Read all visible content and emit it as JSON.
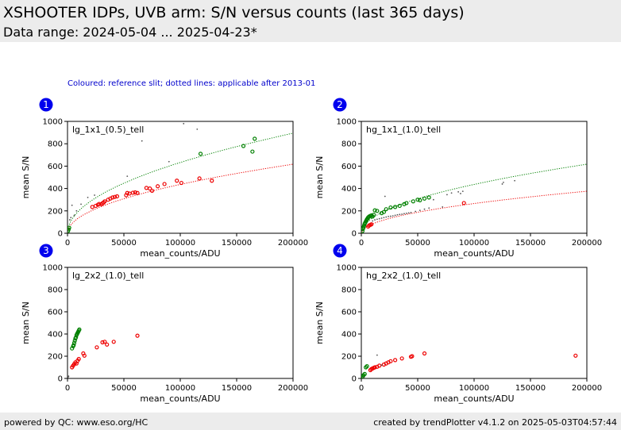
{
  "header": {
    "title": "XSHOOTER IDPs, UVB arm: S/N versus counts (last 365 days)",
    "subtitle": "Data range: 2024-05-04 ... 2025-04-23*"
  },
  "note": "Coloured: reference slit; dotted lines: applicable after 2013-01",
  "footer": {
    "left": "powered by QC: www.eso.org/HC",
    "right": "created by trendPlotter v4.1.2 on 2025-05-03T04:57:44"
  },
  "colors": {
    "green": "#008000",
    "red": "#ee0000",
    "grey": "#555555",
    "badge": "#0000ee"
  },
  "chart_data": [
    {
      "type": "scatter",
      "badge": "1",
      "label": "lg_1x1_(0.5)_tell",
      "xlabel": "mean_counts/ADU",
      "ylabel": "mean S/N",
      "xlim": [
        0,
        200000
      ],
      "ylim": [
        0,
        1000
      ],
      "xticks": [
        0,
        50000,
        100000,
        150000,
        200000
      ],
      "yticks": [
        0,
        200,
        400,
        600,
        800,
        1000
      ],
      "fits": [
        {
          "color": "green",
          "coef": 2.0
        },
        {
          "color": "red",
          "coef": 1.38
        }
      ],
      "series": [
        {
          "color": "green",
          "points": [
            [
              118000,
              710
            ],
            [
              156000,
              780
            ],
            [
              164000,
              730
            ],
            [
              166000,
              845
            ],
            [
              500,
              20
            ],
            [
              1000,
              35
            ],
            [
              1500,
              50
            ]
          ]
        },
        {
          "color": "red",
          "points": [
            [
              22000,
              235
            ],
            [
              25000,
              245
            ],
            [
              27000,
              255
            ],
            [
              28000,
              262
            ],
            [
              30000,
              260
            ],
            [
              31000,
              268
            ],
            [
              32000,
              275
            ],
            [
              33000,
              285
            ],
            [
              36000,
              300
            ],
            [
              38000,
              310
            ],
            [
              40000,
              320
            ],
            [
              42000,
              325
            ],
            [
              44000,
              330
            ],
            [
              52000,
              340
            ],
            [
              53000,
              360
            ],
            [
              55000,
              355
            ],
            [
              58000,
              362
            ],
            [
              60000,
              365
            ],
            [
              62000,
              360
            ],
            [
              70000,
              405
            ],
            [
              73000,
              400
            ],
            [
              75000,
              380
            ],
            [
              80000,
              420
            ],
            [
              86000,
              440
            ],
            [
              97000,
              470
            ],
            [
              101000,
              450
            ],
            [
              117000,
              490
            ],
            [
              128000,
              470
            ]
          ]
        },
        {
          "color": "grey",
          "points": [
            [
              2000,
              120
            ],
            [
              4000,
              250
            ],
            [
              8000,
              200
            ],
            [
              12000,
              260
            ],
            [
              18000,
              320
            ],
            [
              24000,
              340
            ],
            [
              53000,
              510
            ],
            [
              66000,
              825
            ],
            [
              90000,
              640
            ],
            [
              103000,
              980
            ],
            [
              115000,
              930
            ],
            [
              3000,
              140
            ],
            [
              6000,
              160
            ]
          ]
        }
      ]
    },
    {
      "type": "scatter",
      "badge": "2",
      "label": "hg_1x1_(1.0)_tell",
      "xlabel": "mean_counts/ADU",
      "ylabel": "mean S/N",
      "xlim": [
        0,
        200000
      ],
      "ylim": [
        0,
        1000
      ],
      "xticks": [
        0,
        50000,
        100000,
        150000,
        200000
      ],
      "yticks": [
        0,
        200,
        400,
        600,
        800,
        1000
      ],
      "fits": [
        {
          "color": "green",
          "coef": 1.38
        },
        {
          "color": "red",
          "coef": 0.84
        }
      ],
      "series": [
        {
          "color": "green",
          "points": [
            [
              1000,
              20
            ],
            [
              1500,
              40
            ],
            [
              2000,
              55
            ],
            [
              2500,
              70
            ],
            [
              3000,
              85
            ],
            [
              3500,
              95
            ],
            [
              4000,
              105
            ],
            [
              4500,
              115
            ],
            [
              5000,
              125
            ],
            [
              5500,
              130
            ],
            [
              6000,
              140
            ],
            [
              6500,
              145
            ],
            [
              7000,
              150
            ],
            [
              8000,
              155
            ],
            [
              9000,
              160
            ],
            [
              10000,
              150
            ],
            [
              11000,
              165
            ],
            [
              12000,
              205
            ],
            [
              14000,
              200
            ],
            [
              18000,
              180
            ],
            [
              20000,
              190
            ],
            [
              22000,
              215
            ],
            [
              26000,
              230
            ],
            [
              30000,
              235
            ],
            [
              34000,
              245
            ],
            [
              38000,
              260
            ],
            [
              40000,
              270
            ],
            [
              46000,
              285
            ],
            [
              50000,
              300
            ],
            [
              52000,
              295
            ],
            [
              56000,
              310
            ],
            [
              60000,
              320
            ]
          ]
        },
        {
          "color": "red",
          "points": [
            [
              6000,
              60
            ],
            [
              7000,
              70
            ],
            [
              8000,
              75
            ],
            [
              9000,
              80
            ],
            [
              91000,
              270
            ]
          ]
        },
        {
          "color": "grey",
          "points": [
            [
              10000,
              110
            ],
            [
              12000,
              120
            ],
            [
              14000,
              125
            ],
            [
              16000,
              130
            ],
            [
              18000,
              135
            ],
            [
              20000,
              140
            ],
            [
              22000,
              145
            ],
            [
              24000,
              150
            ],
            [
              26000,
              152
            ],
            [
              28000,
              155
            ],
            [
              30000,
              160
            ],
            [
              32000,
              165
            ],
            [
              34000,
              168
            ],
            [
              36000,
              170
            ],
            [
              38000,
              175
            ],
            [
              40000,
              178
            ],
            [
              42000,
              182
            ],
            [
              44000,
              185
            ],
            [
              48000,
              195
            ],
            [
              52000,
              205
            ],
            [
              56000,
              215
            ],
            [
              60000,
              225
            ],
            [
              64000,
              300
            ],
            [
              72000,
              235
            ],
            [
              76000,
              345
            ],
            [
              80000,
              360
            ],
            [
              86000,
              370
            ],
            [
              88000,
              355
            ],
            [
              90000,
              375
            ],
            [
              125000,
              440
            ],
            [
              126000,
              455
            ],
            [
              136000,
              470
            ],
            [
              21000,
              330
            ]
          ]
        }
      ]
    },
    {
      "type": "scatter",
      "badge": "3",
      "label": "lg_2x2_(1.0)_tell",
      "xlabel": "mean_counts/ADU",
      "ylabel": "mean S/N",
      "xlim": [
        0,
        200000
      ],
      "ylim": [
        0,
        1000
      ],
      "xticks": [
        0,
        50000,
        100000,
        150000,
        200000
      ],
      "yticks": [
        0,
        200,
        400,
        600,
        800,
        1000
      ],
      "fits": [],
      "series": [
        {
          "color": "green",
          "points": [
            [
              4000,
              270
            ],
            [
              5000,
              290
            ],
            [
              5500,
              300
            ],
            [
              6000,
              320
            ],
            [
              6500,
              340
            ],
            [
              7000,
              360
            ],
            [
              7500,
              370
            ],
            [
              8000,
              390
            ],
            [
              8500,
              400
            ],
            [
              9000,
              410
            ],
            [
              9500,
              420
            ],
            [
              10000,
              430
            ],
            [
              10500,
              440
            ]
          ]
        },
        {
          "color": "red",
          "points": [
            [
              4000,
              100
            ],
            [
              5000,
              115
            ],
            [
              6000,
              130
            ],
            [
              7000,
              145
            ],
            [
              8000,
              135
            ],
            [
              9000,
              160
            ],
            [
              10000,
              175
            ],
            [
              14000,
              225
            ],
            [
              15000,
              205
            ],
            [
              26000,
              280
            ],
            [
              31000,
              325
            ],
            [
              33000,
              330
            ],
            [
              35000,
              305
            ],
            [
              41000,
              330
            ],
            [
              62000,
              385
            ]
          ]
        },
        {
          "color": "grey",
          "points": [
            [
              500,
              10
            ],
            [
              1000,
              20
            ]
          ]
        }
      ]
    },
    {
      "type": "scatter",
      "badge": "4",
      "label": "hg_2x2_(1.0)_tell",
      "xlabel": "mean_counts/ADU",
      "ylabel": "mean S/N",
      "xlim": [
        0,
        200000
      ],
      "ylim": [
        0,
        1000
      ],
      "xticks": [
        0,
        50000,
        100000,
        150000,
        200000
      ],
      "yticks": [
        0,
        200,
        400,
        600,
        800,
        1000
      ],
      "fits": [],
      "series": [
        {
          "color": "green",
          "points": [
            [
              500,
              5
            ],
            [
              1000,
              15
            ],
            [
              1500,
              20
            ],
            [
              2000,
              30
            ],
            [
              3000,
              40
            ],
            [
              4000,
              100
            ],
            [
              5000,
              110
            ]
          ]
        },
        {
          "color": "red",
          "points": [
            [
              8000,
              75
            ],
            [
              9000,
              85
            ],
            [
              10000,
              90
            ],
            [
              11000,
              95
            ],
            [
              12000,
              100
            ],
            [
              14000,
              105
            ],
            [
              16000,
              115
            ],
            [
              20000,
              125
            ],
            [
              22000,
              135
            ],
            [
              24000,
              145
            ],
            [
              26000,
              155
            ],
            [
              30000,
              165
            ],
            [
              36000,
              180
            ],
            [
              44000,
              195
            ],
            [
              45000,
              200
            ],
            [
              56000,
              225
            ],
            [
              190000,
              205
            ]
          ]
        },
        {
          "color": "grey",
          "points": [
            [
              14000,
              210
            ],
            [
              18000,
              120
            ],
            [
              2000,
              10
            ]
          ]
        }
      ]
    }
  ]
}
